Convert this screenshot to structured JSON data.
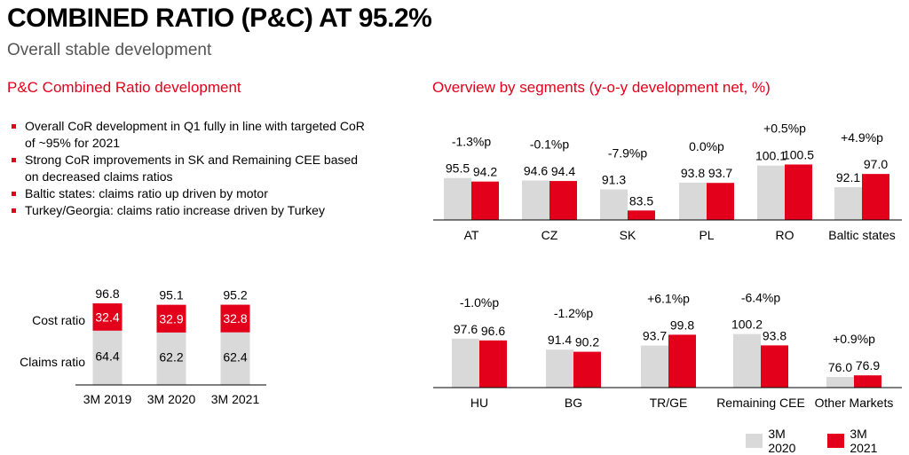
{
  "header": {
    "title": "COMBINED RATIO (P&C) AT 95.2%",
    "subtitle": "Overall stable development"
  },
  "left": {
    "section_title": "P&C Combined Ratio development",
    "bullets": [
      "Overall CoR development in Q1 fully in line with targeted CoR of ~95% for 2021",
      "Strong CoR improvements in SK and Remaining CEE based on decreased claims ratios",
      "Baltic states: claims ratio up driven by motor",
      "Turkey/Georgia: claims ratio increase driven by Turkey"
    ]
  },
  "right": {
    "section_title": "Overview by segments (y-o-y development net, %)"
  },
  "colors": {
    "red": "#e2001a",
    "gray": "#d9d9d9"
  },
  "chart_data": [
    {
      "type": "bar",
      "stacked": true,
      "categories": [
        "3M 2019",
        "3M 2020",
        "3M 2021"
      ],
      "series": [
        {
          "name": "Claims ratio",
          "values": [
            64.4,
            62.2,
            62.4
          ],
          "labels": [
            "64.4",
            "62.2",
            "62.4"
          ]
        },
        {
          "name": "Cost ratio",
          "values": [
            32.4,
            32.9,
            32.8
          ],
          "labels": [
            "32.4",
            "32.9",
            "32.8"
          ]
        }
      ],
      "totals": [
        96.8,
        95.1,
        95.2
      ],
      "total_labels": [
        "96.8",
        "95.1",
        "95.2"
      ]
    },
    {
      "type": "bar",
      "categories": [
        "AT",
        "CZ",
        "SK",
        "PL",
        "RO",
        "Baltic states"
      ],
      "series": [
        {
          "name": "3M 2020",
          "values": [
            95.5,
            94.6,
            91.3,
            93.8,
            100.1,
            92.1
          ],
          "labels": [
            "95.5",
            "94.6",
            "91.3",
            "93.8",
            "100.1",
            "92.1"
          ]
        },
        {
          "name": "3M 2021",
          "values": [
            94.2,
            94.4,
            83.5,
            93.7,
            100.5,
            97.0
          ],
          "labels": [
            "94.2",
            "94.4",
            "83.5",
            "93.7",
            "100.5",
            "97.0"
          ]
        }
      ],
      "deltas": [
        "-1.3%p",
        "-0.1%p",
        "-7.9%p",
        "0.0%p",
        "+0.5%p",
        "+4.9%p"
      ]
    },
    {
      "type": "bar",
      "categories": [
        "HU",
        "BG",
        "TR/GE",
        "Remaining CEE",
        "Other Markets"
      ],
      "series": [
        {
          "name": "3M 2020",
          "values": [
            97.6,
            91.4,
            93.7,
            100.2,
            76.0
          ],
          "labels": [
            "97.6",
            "91.4",
            "93.7",
            "100.2",
            "76.0"
          ]
        },
        {
          "name": "3M 2021",
          "values": [
            96.6,
            90.2,
            99.8,
            93.8,
            76.9
          ],
          "labels": [
            "96.6",
            "90.2",
            "99.8",
            "93.8",
            "76.9"
          ]
        }
      ],
      "deltas": [
        "-1.0%p",
        "-1.2%p",
        "+6.1%p",
        "-6.4%p",
        "+0.9%p"
      ]
    }
  ],
  "legend": [
    "3M 2020",
    "3M 2021"
  ]
}
